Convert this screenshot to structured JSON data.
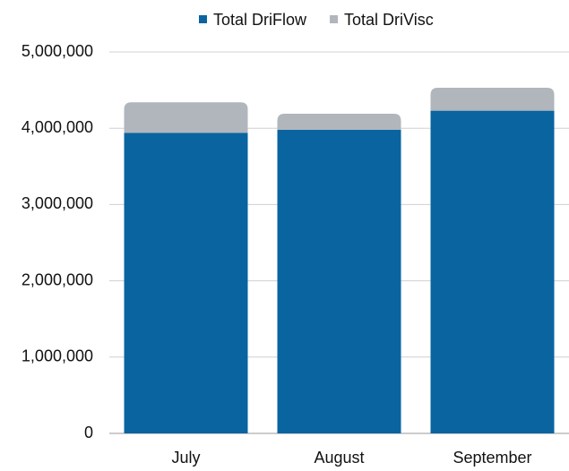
{
  "chart_data": {
    "type": "stacked_bar",
    "categories": [
      "July",
      "August",
      "September"
    ],
    "series": [
      {
        "name": "Total DriFlow",
        "color": "#0a64a0",
        "values": [
          3940000,
          3980000,
          4230000
        ]
      },
      {
        "name": "Total DriVisc",
        "color": "#b1b5bc",
        "values": [
          400000,
          210000,
          300000
        ]
      }
    ],
    "ylim": [
      0,
      5000000
    ],
    "yticks": [
      0,
      {
        "value": 1000000,
        "label": "1,000,000"
      },
      {
        "value": 2000000,
        "label": "2,000,000"
      },
      {
        "value": 3000000,
        "label": "3,000,000"
      },
      {
        "value": 4000000,
        "label": "4,000,000"
      },
      {
        "value": 5000000,
        "label": "5,000,000"
      }
    ],
    "grid": true,
    "legend": "top"
  }
}
